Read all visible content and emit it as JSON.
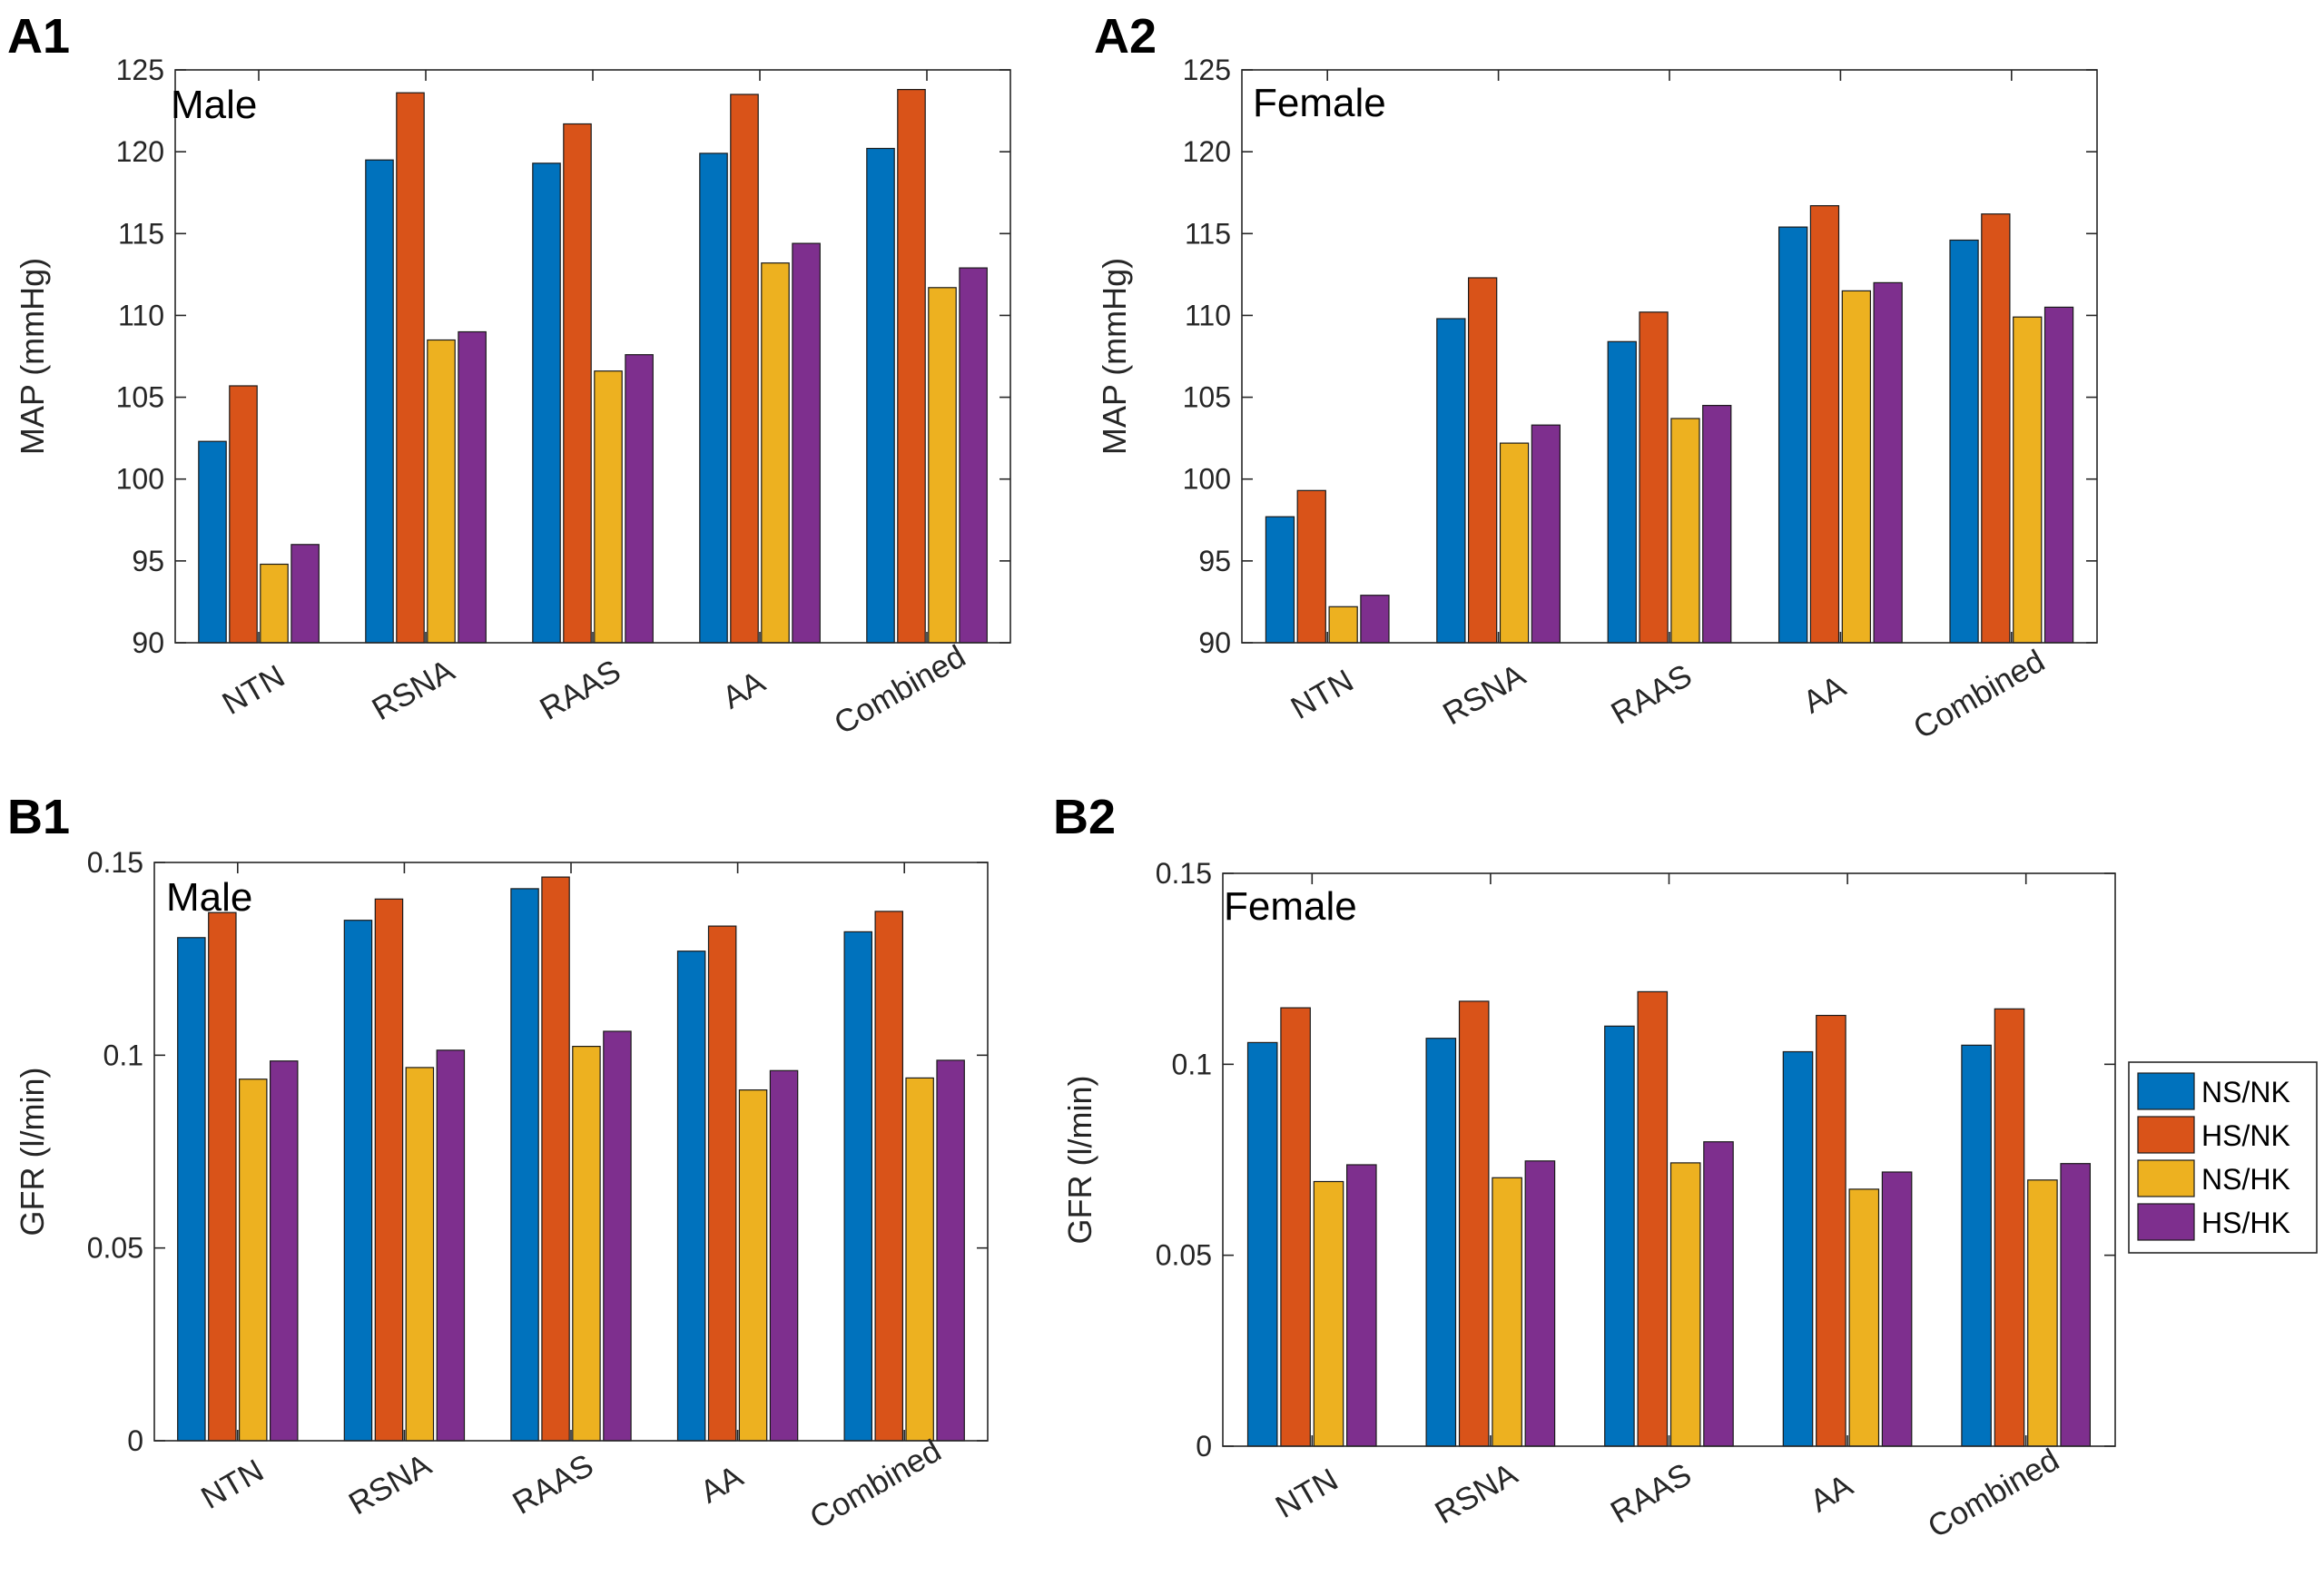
{
  "legend": {
    "entries": [
      "NS/NK",
      "HS/NK",
      "NS/HK",
      "HS/HK"
    ],
    "colors": [
      "#0072BD",
      "#D95319",
      "#EDB120",
      "#7E2F8E"
    ]
  },
  "chart_data": [
    {
      "panel": "A1",
      "type": "bar",
      "title": "Male",
      "ylabel": "MAP (mmHg)",
      "xlabel": "",
      "ylim": [
        90,
        125
      ],
      "yticks": [
        "90",
        "95",
        "100",
        "105",
        "110",
        "115",
        "120",
        "125"
      ],
      "categories": [
        "NTN",
        "RSNA",
        "RAAS",
        "AA",
        "Combined"
      ],
      "series": [
        {
          "name": "NS/NK",
          "values": [
            102.3,
            119.5,
            119.3,
            119.9,
            120.2
          ]
        },
        {
          "name": "HS/NK",
          "values": [
            105.7,
            123.6,
            121.7,
            123.5,
            123.8
          ]
        },
        {
          "name": "NS/HK",
          "values": [
            94.8,
            108.5,
            106.6,
            113.2,
            111.7
          ]
        },
        {
          "name": "HS/HK",
          "values": [
            96.0,
            109.0,
            107.6,
            114.4,
            112.9
          ]
        }
      ],
      "grid": false,
      "legend": "none"
    },
    {
      "panel": "A2",
      "type": "bar",
      "title": "Female",
      "ylabel": "MAP (mmHg)",
      "xlabel": "",
      "ylim": [
        90,
        125
      ],
      "yticks": [
        "90",
        "95",
        "100",
        "105",
        "110",
        "115",
        "120",
        "125"
      ],
      "categories": [
        "NTN",
        "RSNA",
        "RAAS",
        "AA",
        "Combined"
      ],
      "series": [
        {
          "name": "NS/NK",
          "values": [
            97.7,
            109.8,
            108.4,
            115.4,
            114.6
          ]
        },
        {
          "name": "HS/NK",
          "values": [
            99.3,
            112.3,
            110.2,
            116.7,
            116.2
          ]
        },
        {
          "name": "NS/HK",
          "values": [
            92.2,
            102.2,
            103.7,
            111.5,
            109.9
          ]
        },
        {
          "name": "HS/HK",
          "values": [
            92.9,
            103.3,
            104.5,
            112.0,
            110.5
          ]
        }
      ],
      "grid": false,
      "legend": "none"
    },
    {
      "panel": "B1",
      "type": "bar",
      "title": "Male",
      "ylabel": "GFR (l/min)",
      "xlabel": "",
      "ylim": [
        0,
        0.15
      ],
      "yticks": [
        "0",
        "0.05",
        "0.1",
        "0.15"
      ],
      "categories": [
        "NTN",
        "RSNA",
        "RAAS",
        "AA",
        "Combined"
      ],
      "series": [
        {
          "name": "NS/NK",
          "values": [
            0.1305,
            0.135,
            0.1432,
            0.127,
            0.132
          ]
        },
        {
          "name": "HS/NK",
          "values": [
            0.137,
            0.1405,
            0.1462,
            0.1335,
            0.1373
          ]
        },
        {
          "name": "NS/HK",
          "values": [
            0.0938,
            0.0968,
            0.1023,
            0.091,
            0.0941
          ]
        },
        {
          "name": "HS/HK",
          "values": [
            0.0985,
            0.1013,
            0.1062,
            0.096,
            0.0987
          ]
        }
      ],
      "grid": false,
      "legend": "none"
    },
    {
      "panel": "B2",
      "type": "bar",
      "title": "Female",
      "ylabel": "GFR (l/min)",
      "xlabel": "",
      "ylim": [
        0,
        0.15
      ],
      "yticks": [
        "0",
        "0.05",
        "0.1",
        "0.15"
      ],
      "categories": [
        "NTN",
        "RSNA",
        "RAAS",
        "AA",
        "Combined"
      ],
      "series": [
        {
          "name": "NS/NK",
          "values": [
            0.1057,
            0.1068,
            0.11,
            0.1033,
            0.105
          ]
        },
        {
          "name": "HS/NK",
          "values": [
            0.1148,
            0.1165,
            0.119,
            0.1128,
            0.1145
          ]
        },
        {
          "name": "NS/HK",
          "values": [
            0.0693,
            0.0703,
            0.0742,
            0.0673,
            0.0697
          ]
        },
        {
          "name": "HS/HK",
          "values": [
            0.0737,
            0.0747,
            0.0797,
            0.0718,
            0.074
          ]
        }
      ],
      "grid": false,
      "legend": "right"
    }
  ]
}
